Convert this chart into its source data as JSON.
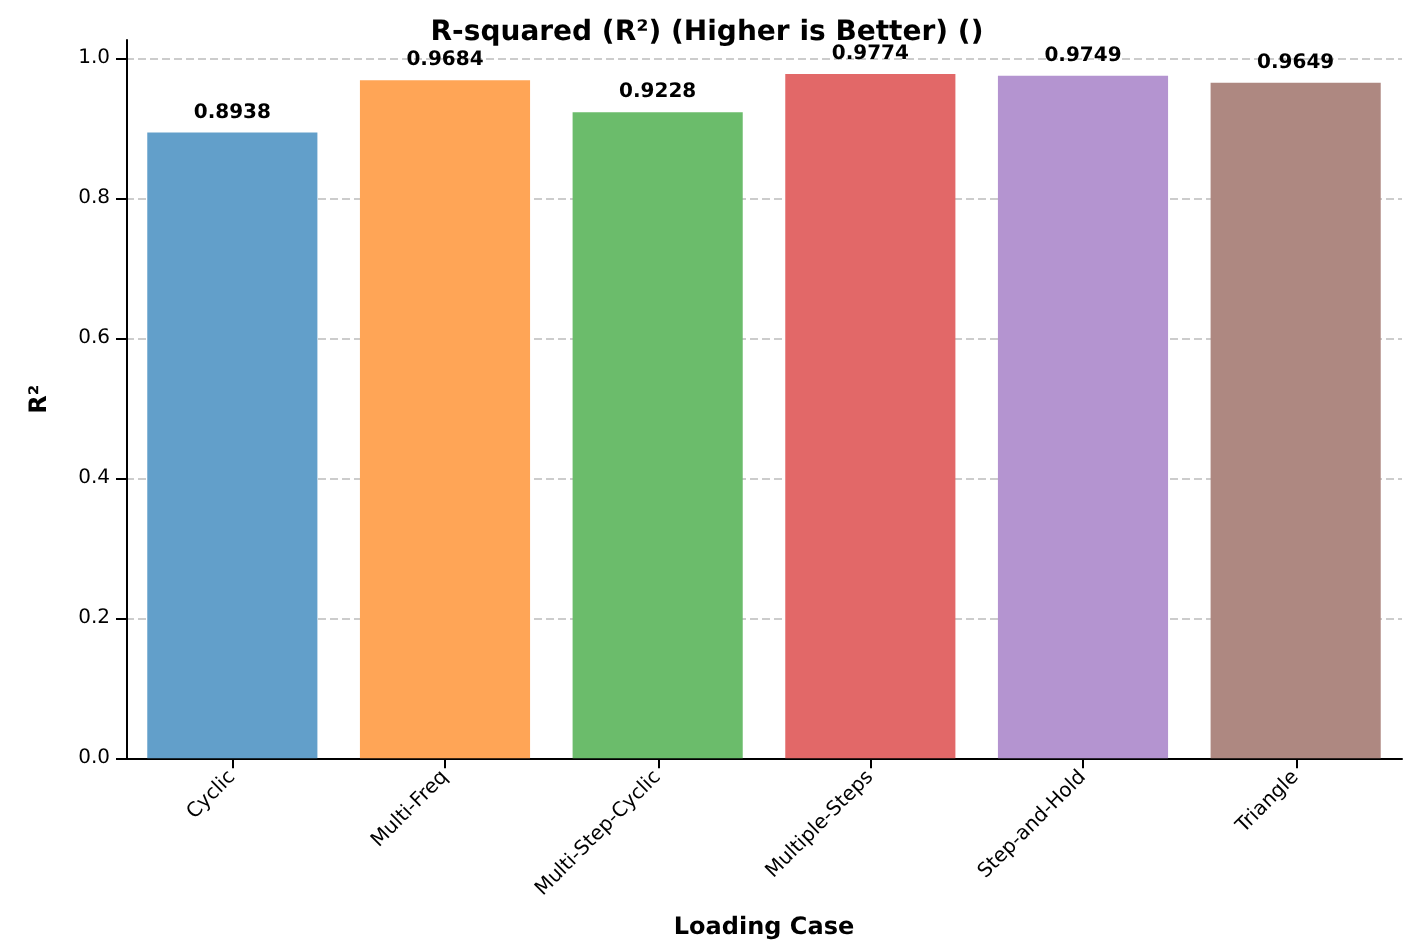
{
  "chart_data": {
    "type": "bar",
    "title": "R-squared (R²) (Higher is Better) ()",
    "xlabel": "Loading Case",
    "ylabel": "R²",
    "categories": [
      "Cyclic",
      "Multi-Freq",
      "Multi-Step-Cyclic",
      "Multiple-Steps",
      "Step-and-Hold",
      "Triangle"
    ],
    "values": [
      0.8938,
      0.9684,
      0.9228,
      0.9774,
      0.9749,
      0.9649
    ],
    "colors": [
      "#629fca",
      "#ffa556",
      "#6bbc6b",
      "#e26868",
      "#b494d0",
      "#ae8881"
    ],
    "ylim": [
      0,
      1.026
    ],
    "yticks": [
      {
        "value": 0,
        "label": "0.0"
      },
      {
        "value": 0.2,
        "label": "0.2"
      },
      {
        "value": 0.4,
        "label": "0.4"
      },
      {
        "value": 0.6,
        "label": "0.6"
      },
      {
        "value": 0.8,
        "label": "0.8"
      },
      {
        "value": 1,
        "label": "1.0"
      }
    ],
    "grid": "y",
    "data_labels": true
  }
}
